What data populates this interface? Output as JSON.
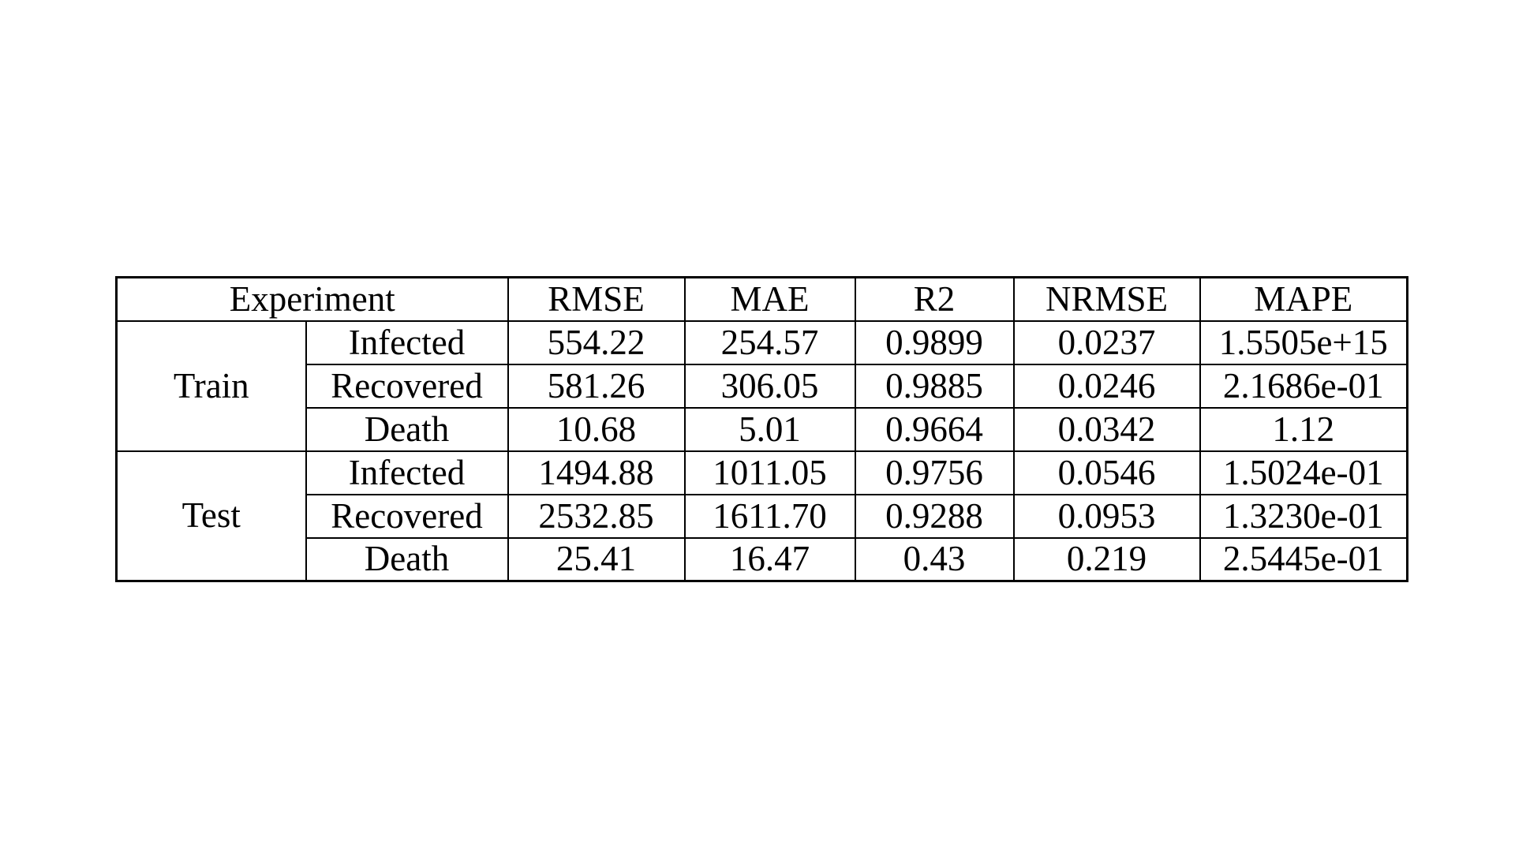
{
  "table": {
    "header": {
      "experiment": "Experiment",
      "metrics": [
        "RMSE",
        "MAE",
        "R2",
        "NRMSE",
        "MAPE"
      ]
    },
    "groups": [
      {
        "name": "Train",
        "rows": [
          {
            "label": "Infected",
            "values": [
              "554.22",
              "254.57",
              "0.9899",
              "0.0237",
              "1.5505e+15"
            ]
          },
          {
            "label": "Recovered",
            "values": [
              "581.26",
              "306.05",
              "0.9885",
              "0.0246",
              "2.1686e-01"
            ]
          },
          {
            "label": "Death",
            "values": [
              "10.68",
              "5.01",
              "0.9664",
              "0.0342",
              "1.12"
            ]
          }
        ]
      },
      {
        "name": "Test",
        "rows": [
          {
            "label": "Infected",
            "values": [
              "1494.88",
              "1011.05",
              "0.9756",
              "0.0546",
              "1.5024e-01"
            ]
          },
          {
            "label": "Recovered",
            "values": [
              "2532.85",
              "1611.70",
              "0.9288",
              "0.0953",
              "1.3230e-01"
            ]
          },
          {
            "label": "Death",
            "values": [
              "25.41",
              "16.47",
              "0.43",
              "0.219",
              "2.5445e-01"
            ]
          }
        ]
      }
    ]
  }
}
